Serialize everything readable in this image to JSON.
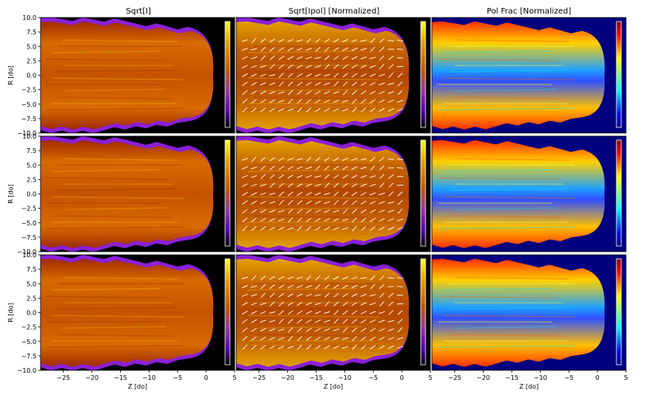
{
  "figure": {
    "column_titles": [
      "Sqrt[I]",
      "Sqrt[Ipol] [Normalized]",
      "Pol Frac [Normalized]"
    ]
  },
  "chart_data": {
    "type": "heatmap",
    "layout": "3 rows x 3 columns of image panels sharing axes",
    "xlabel": "Z [do]",
    "ylabel": "R [do]",
    "xlim": [
      -29,
      5
    ],
    "ylim": [
      -10,
      10
    ],
    "xticks": [
      -25,
      -20,
      -15,
      -10,
      -5,
      0,
      5
    ],
    "yticks": [
      -10.0,
      -7.5,
      -5.0,
      -2.5,
      0.0,
      2.5,
      5.0,
      7.5,
      10.0
    ],
    "xtick_labels": [
      "−25",
      "−20",
      "−15",
      "−10",
      "−5",
      "0",
      "5"
    ],
    "ytick_labels": [
      "−10.0",
      "−7.5",
      "−5.0",
      "−2.5",
      "0.0",
      "2.5",
      "5.0",
      "7.5",
      "10.0"
    ],
    "colormaps": [
      "gnuplot",
      "gnuplot",
      "jet"
    ],
    "background_colors": [
      "#000000",
      "#000000",
      "#00007f"
    ],
    "jet_head_z": 1.2,
    "jet_radius": 7.2,
    "colorbar": "inside each panel, right side, no tick labels",
    "polarization_vectors": "white line segments overlaid on middle column"
  }
}
